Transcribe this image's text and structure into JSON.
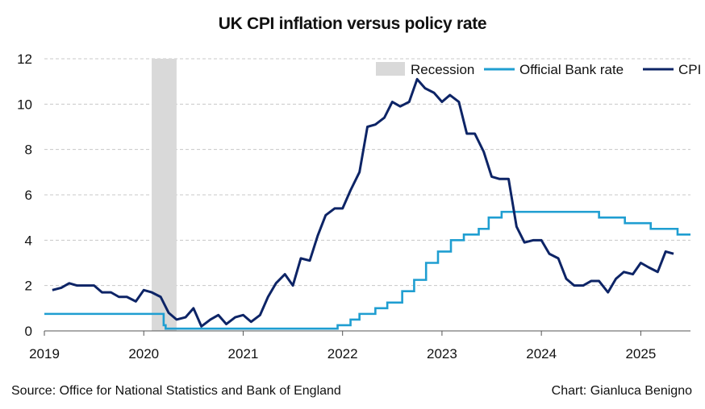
{
  "chart_data": {
    "type": "line",
    "title": "UK CPI inflation versus policy rate",
    "xlabel": "",
    "ylabel": "",
    "xlim": [
      2019.0,
      2025.5
    ],
    "ylim": [
      0,
      12
    ],
    "yticks": [
      0,
      2,
      4,
      6,
      8,
      10,
      12
    ],
    "xticks": [
      2019,
      2020,
      2021,
      2022,
      2023,
      2024,
      2025
    ],
    "xtick_labels": [
      "2019",
      "2020",
      "2021",
      "2022",
      "2023",
      "2024",
      "2025"
    ],
    "grid": "horizontal dashed",
    "legend_position": "top-right",
    "legend": [
      {
        "label": "Recession",
        "kind": "band",
        "color": "#d9d9d9"
      },
      {
        "label": "Official Bank rate",
        "kind": "line",
        "color": "#1f9ed1"
      },
      {
        "label": "CPI",
        "kind": "line",
        "color": "#0d2466"
      }
    ],
    "recession": {
      "start": 2020.08,
      "end": 2020.33
    },
    "series": [
      {
        "name": "CPI",
        "color": "#0d2466",
        "points": [
          [
            2019.08,
            1.8
          ],
          [
            2019.17,
            1.9
          ],
          [
            2019.25,
            2.1
          ],
          [
            2019.33,
            2.0
          ],
          [
            2019.42,
            2.0
          ],
          [
            2019.5,
            2.0
          ],
          [
            2019.58,
            1.7
          ],
          [
            2019.67,
            1.7
          ],
          [
            2019.75,
            1.5
          ],
          [
            2019.83,
            1.5
          ],
          [
            2019.92,
            1.3
          ],
          [
            2020.0,
            1.8
          ],
          [
            2020.08,
            1.7
          ],
          [
            2020.17,
            1.5
          ],
          [
            2020.25,
            0.8
          ],
          [
            2020.33,
            0.5
          ],
          [
            2020.42,
            0.6
          ],
          [
            2020.5,
            1.0
          ],
          [
            2020.58,
            0.2
          ],
          [
            2020.67,
            0.5
          ],
          [
            2020.75,
            0.7
          ],
          [
            2020.83,
            0.3
          ],
          [
            2020.92,
            0.6
          ],
          [
            2021.0,
            0.7
          ],
          [
            2021.08,
            0.4
          ],
          [
            2021.17,
            0.7
          ],
          [
            2021.25,
            1.5
          ],
          [
            2021.33,
            2.1
          ],
          [
            2021.42,
            2.5
          ],
          [
            2021.5,
            2.0
          ],
          [
            2021.58,
            3.2
          ],
          [
            2021.67,
            3.1
          ],
          [
            2021.75,
            4.2
          ],
          [
            2021.83,
            5.1
          ],
          [
            2021.92,
            5.4
          ],
          [
            2022.0,
            5.4
          ],
          [
            2022.08,
            6.2
          ],
          [
            2022.17,
            7.0
          ],
          [
            2022.25,
            9.0
          ],
          [
            2022.33,
            9.1
          ],
          [
            2022.42,
            9.4
          ],
          [
            2022.5,
            10.1
          ],
          [
            2022.58,
            9.9
          ],
          [
            2022.67,
            10.1
          ],
          [
            2022.75,
            11.1
          ],
          [
            2022.83,
            10.7
          ],
          [
            2022.92,
            10.5
          ],
          [
            2023.0,
            10.1
          ],
          [
            2023.08,
            10.4
          ],
          [
            2023.17,
            10.1
          ],
          [
            2023.25,
            8.7
          ],
          [
            2023.33,
            8.7
          ],
          [
            2023.42,
            7.9
          ],
          [
            2023.5,
            6.8
          ],
          [
            2023.58,
            6.7
          ],
          [
            2023.67,
            6.7
          ],
          [
            2023.75,
            4.6
          ],
          [
            2023.83,
            3.9
          ],
          [
            2023.92,
            4.0
          ],
          [
            2024.0,
            4.0
          ],
          [
            2024.08,
            3.4
          ],
          [
            2024.17,
            3.2
          ],
          [
            2024.25,
            2.3
          ],
          [
            2024.33,
            2.0
          ],
          [
            2024.42,
            2.0
          ],
          [
            2024.5,
            2.2
          ],
          [
            2024.58,
            2.2
          ],
          [
            2024.67,
            1.7
          ],
          [
            2024.75,
            2.3
          ],
          [
            2024.83,
            2.6
          ],
          [
            2024.92,
            2.5
          ],
          [
            2025.0,
            3.0
          ],
          [
            2025.08,
            2.8
          ],
          [
            2025.17,
            2.6
          ],
          [
            2025.25,
            3.5
          ],
          [
            2025.33,
            3.4
          ]
        ]
      },
      {
        "name": "Official Bank rate",
        "color": "#1f9ed1",
        "steps": [
          [
            2019.0,
            0.75
          ],
          [
            2020.2,
            0.25
          ],
          [
            2020.22,
            0.1
          ],
          [
            2021.95,
            0.25
          ],
          [
            2022.08,
            0.5
          ],
          [
            2022.17,
            0.75
          ],
          [
            2022.33,
            1.0
          ],
          [
            2022.45,
            1.25
          ],
          [
            2022.6,
            1.75
          ],
          [
            2022.72,
            2.25
          ],
          [
            2022.84,
            3.0
          ],
          [
            2022.96,
            3.5
          ],
          [
            2023.09,
            4.0
          ],
          [
            2023.22,
            4.25
          ],
          [
            2023.37,
            4.5
          ],
          [
            2023.47,
            5.0
          ],
          [
            2023.6,
            5.25
          ],
          [
            2024.58,
            5.0
          ],
          [
            2024.84,
            4.75
          ],
          [
            2025.1,
            4.5
          ],
          [
            2025.37,
            4.25
          ],
          [
            2025.5,
            4.25
          ]
        ]
      }
    ],
    "source": "Source: Office for National Statistics and Bank of England",
    "credit": "Chart: Gianluca Benigno"
  }
}
